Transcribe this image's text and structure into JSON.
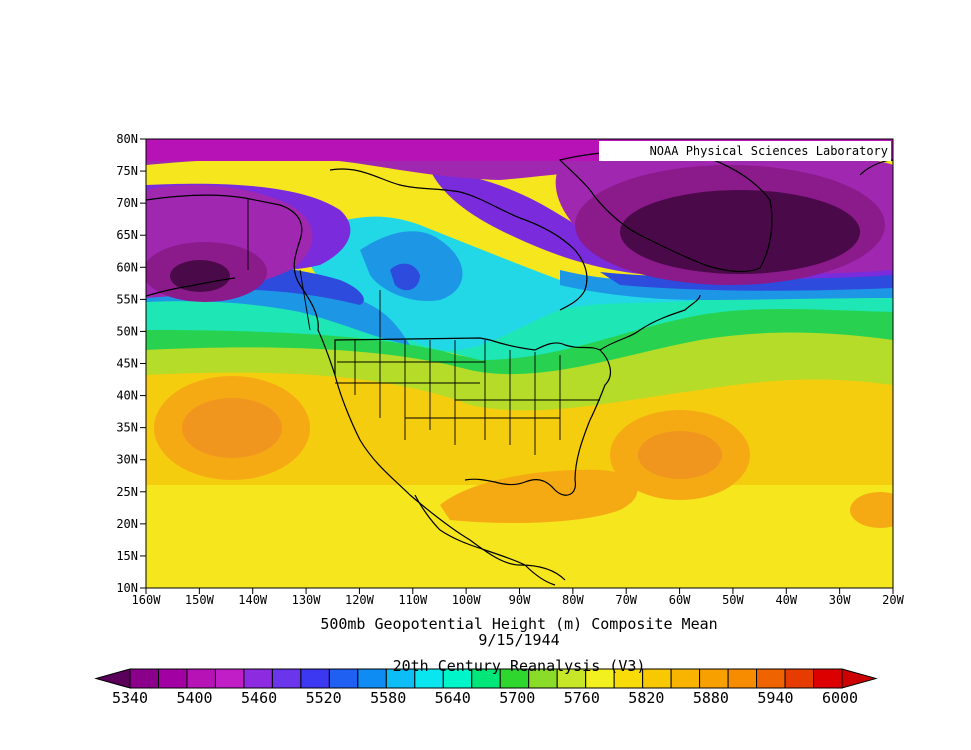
{
  "credit": "NOAA Physical Sciences Laboratory",
  "title_line1": "500mb Geopotential Height (m) Composite Mean",
  "title_line2": "9/15/1944",
  "title_line3": "20th Century Reanalysis (V3)",
  "lat_labels": [
    "80N",
    "75N",
    "70N",
    "65N",
    "60N",
    "55N",
    "50N",
    "45N",
    "40N",
    "35N",
    "30N",
    "25N",
    "20N",
    "15N",
    "10N"
  ],
  "lon_labels": [
    "160W",
    "150W",
    "140W",
    "130W",
    "120W",
    "110W",
    "100W",
    "90W",
    "80W",
    "70W",
    "60W",
    "50W",
    "40W",
    "30W",
    "20W"
  ],
  "colorbar_labels": [
    "5340",
    "5400",
    "5460",
    "5520",
    "5580",
    "5640",
    "5700",
    "5760",
    "5820",
    "5880",
    "5940",
    "6000"
  ],
  "colorbar_colors": [
    "#8b008b",
    "#a300a3",
    "#b612b6",
    "#c21ec8",
    "#8c2be0",
    "#6a35eb",
    "#3c37f0",
    "#1f5ff2",
    "#0f8cf3",
    "#0dbdf5",
    "#0ae6f0",
    "#00f5c8",
    "#00e678",
    "#2ed62e",
    "#8bdc28",
    "#c8e628",
    "#f2f01e",
    "#f7dc0a",
    "#f8c800",
    "#f8b400",
    "#f8a000",
    "#f88c00",
    "#f06400",
    "#e63c00",
    "#dd0000"
  ],
  "field_colors": {
    "low_deep": "#4a0a4a",
    "low_mid": "#8b1a8b",
    "purple": "#a028b0",
    "violet": "#7a2bdc",
    "blue": "#2d4bdc",
    "sky": "#1e96e6",
    "cyan": "#22d8e6",
    "aqua": "#1ee6b4",
    "green": "#28d250",
    "yellowgreen": "#b4dc28",
    "yellow": "#f5e61e",
    "gold": "#f5cd0f",
    "orange": "#f5aa14",
    "deeporange": "#f0961e"
  }
}
